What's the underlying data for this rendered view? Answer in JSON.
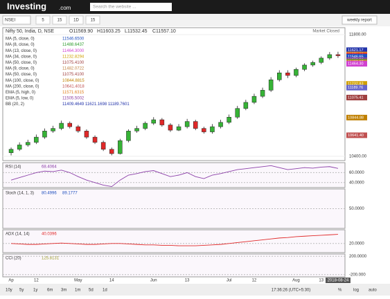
{
  "ui": {
    "logo": "Investing",
    "logo_suffix": ".com",
    "search_placeholder": "Search the website ...",
    "symbol": "NSEI",
    "intervals": [
      "5",
      "15",
      "1D",
      "15"
    ],
    "weekly_report": "weekly report",
    "market_status": "Market Closed",
    "ranges": [
      "10y",
      "5y",
      "1y",
      "6m",
      "3m",
      "1m",
      "5d",
      "1d"
    ],
    "time": "17:36:26 (UTC+5:30)",
    "scale_options": [
      "%",
      "log",
      "auto"
    ]
  },
  "chart_data": {
    "type": "candlestick",
    "title": "Nifty 50, India, D, NSE",
    "ohlc_labels": [
      "O11569.90",
      "H11603.25",
      "L11532.45",
      "C11557.10"
    ],
    "indicators": [
      {
        "name": "MA (5, close, 0)",
        "value": "11546.6500",
        "color": "#1f4fbf"
      },
      {
        "name": "MA (8, close, 0)",
        "value": "11488.6437",
        "color": "#2a9a2a"
      },
      {
        "name": "MA (13, close, 0)",
        "value": "11464.3000",
        "color": "#d040d0"
      },
      {
        "name": "MA (34, close, 0)",
        "value": "11232.8294",
        "color": "#d0a000"
      },
      {
        "name": "MA (50, close, 0)",
        "value": "11075.4100",
        "color": "#a04040"
      },
      {
        "name": "MA (9, close, 0)",
        "value": "11482.0722",
        "color": "#c08040"
      },
      {
        "name": "MA (50, close, 0)",
        "value": "11075.4100",
        "color": "#a04040"
      },
      {
        "name": "MA (100, close, 0)",
        "value": "10844.8815",
        "color": "#c08000"
      },
      {
        "name": "MA (200, close, 0)",
        "value": "10641.4018",
        "color": "#c05050"
      },
      {
        "name": "EMA (5, high, 0)",
        "value": "11571.6315",
        "color": "#e08020"
      },
      {
        "name": "EMA (5, low, 0)",
        "value": "11505.5002",
        "color": "#9040a0"
      },
      {
        "name": "BB (20, 2)",
        "value": "11409.4649   11621.1698   11189.7601",
        "color": "#2233aa"
      }
    ],
    "categories": [
      "Ap",
      null,
      null,
      "12",
      null,
      null,
      null,
      null,
      "May",
      null,
      null,
      null,
      "14",
      null,
      null,
      null,
      null,
      "Jun",
      null,
      null,
      null,
      "13",
      null,
      null,
      null,
      null,
      "Jul",
      null,
      null,
      "12",
      null,
      null,
      null,
      null,
      "Aug",
      null,
      null,
      "13",
      null,
      "2018-08-24"
    ],
    "open": [
      10440,
      10480,
      10530,
      10560,
      10620,
      10690,
      10720,
      10780,
      10740,
      10690,
      10620,
      10560,
      10480,
      10430,
      10580,
      10690,
      10720,
      10780,
      10820,
      10760,
      10700,
      10740,
      10800,
      10720,
      10680,
      10740,
      10790,
      10850,
      10950,
      11020,
      11090,
      11160,
      11280,
      11360,
      11330,
      11400,
      11450,
      11480,
      11530,
      11569.9
    ],
    "high": [
      10500,
      10560,
      10590,
      10650,
      10720,
      10750,
      10810,
      10800,
      10760,
      10710,
      10640,
      10580,
      10500,
      10600,
      10710,
      10750,
      10800,
      10850,
      10840,
      10780,
      10770,
      10830,
      10820,
      10740,
      10770,
      10820,
      10880,
      10980,
      11050,
      11120,
      11190,
      11310,
      11390,
      11390,
      11420,
      11470,
      11500,
      11550,
      11600,
      11603.25
    ],
    "low": [
      10410,
      10460,
      10510,
      10540,
      10600,
      10670,
      10700,
      10720,
      10670,
      10600,
      10540,
      10460,
      10410,
      10420,
      10560,
      10670,
      10700,
      10760,
      10740,
      10680,
      10690,
      10720,
      10700,
      10660,
      10660,
      10720,
      10770,
      10830,
      10930,
      11000,
      11070,
      11140,
      11260,
      11300,
      11310,
      11380,
      11430,
      11460,
      11510,
      11532.45
    ],
    "close": [
      10480,
      10530,
      10560,
      10620,
      10690,
      10720,
      10780,
      10740,
      10690,
      10620,
      10560,
      10480,
      10430,
      10580,
      10690,
      10720,
      10780,
      10820,
      10760,
      10700,
      10740,
      10800,
      10720,
      10680,
      10740,
      10790,
      10850,
      10950,
      11020,
      11090,
      11160,
      11280,
      11360,
      11330,
      11400,
      11450,
      11480,
      11530,
      11570,
      11557.1
    ],
    "up_color": "#36b336",
    "down_color": "#e02828",
    "ylim": [
      10350,
      11880
    ],
    "yticks": [
      {
        "value": 10400,
        "label": "10400.00"
      },
      {
        "value": 11800,
        "label": "11800.00"
      }
    ],
    "grid": true,
    "price_tags": [
      {
        "value": 11621.17,
        "label": "11621.17",
        "color": "#2233aa"
      },
      {
        "value": 11571.63,
        "label": "11571.63",
        "color": "#e08020"
      },
      {
        "value": 11557.1,
        "label": "11557.10",
        "color": "#e02828"
      },
      {
        "value": 11546.65,
        "label": "11546.65",
        "color": "#1f4fbf"
      },
      {
        "value": 11505.5,
        "label": "11505.50",
        "color": "#9040a0"
      },
      {
        "value": 11488.64,
        "label": "11488.64",
        "color": "#2a9a2a"
      },
      {
        "value": 11482.07,
        "label": "11482.07",
        "color": "#c08040"
      },
      {
        "value": 11464.3,
        "label": "11464.30",
        "color": "#d040d0"
      },
      {
        "value": 11232.83,
        "label": "11232.83",
        "color": "#d0a000"
      },
      {
        "value": 11189.76,
        "label": "11189.76",
        "color": "#6666cc"
      },
      {
        "value": 11075.41,
        "label": "11075.41",
        "color": "#a04040"
      },
      {
        "value": 10844.88,
        "label": "10844.88",
        "color": "#c08000"
      },
      {
        "value": 10641.4,
        "label": "10641.40",
        "color": "#c05050"
      }
    ],
    "panes": [
      {
        "name": "RSI (14)",
        "value_labels": [
          "68.4064"
        ],
        "color": "#8b3fa8",
        "ylim": [
          30,
          80
        ],
        "yticks": [
          {
            "value": 40,
            "label": "40.0000"
          },
          {
            "value": 60,
            "label": "60.0000"
          }
        ],
        "values": [
          45,
          50,
          55,
          60,
          63,
          62,
          65,
          60,
          52,
          45,
          40,
          35,
          32,
          45,
          55,
          58,
          62,
          64,
          58,
          52,
          55,
          60,
          52,
          48,
          55,
          58,
          62,
          66,
          68,
          70,
          72,
          74,
          70,
          66,
          68,
          70,
          69,
          71,
          72,
          68.4064
        ]
      },
      {
        "name": "Stoch (14, 1, 3)",
        "value_labels": [
          "80.4996",
          "89.1777"
        ],
        "color": "#1f4fbf",
        "ylim": [
          0,
          100
        ],
        "yticks": [
          {
            "value": 50,
            "label": "50.0000"
          }
        ]
      },
      {
        "name": "ADX (14, 14)",
        "value_labels": [
          "40.0396"
        ],
        "color": "#e02828",
        "ylim": [
          0,
          50
        ],
        "yticks": [
          {
            "value": 20,
            "label": "20.0000"
          }
        ],
        "values": [
          20,
          19,
          18,
          18,
          19,
          20,
          21,
          20,
          19,
          18,
          18,
          19,
          20,
          20,
          19,
          18,
          17,
          17,
          16,
          16,
          15,
          15,
          15,
          16,
          17,
          18,
          20,
          22,
          24,
          26,
          28,
          30,
          32,
          33,
          35,
          36,
          37,
          38,
          39,
          40.04
        ]
      },
      {
        "name": "CCI (20)",
        "value_labels": [
          "125.8131"
        ],
        "color": "#9a9a20",
        "ylim": [
          -250,
          250
        ],
        "yticks": [
          {
            "value": 200,
            "label": "200.0000"
          },
          {
            "value": -200,
            "label": "-200.000"
          }
        ]
      }
    ]
  }
}
